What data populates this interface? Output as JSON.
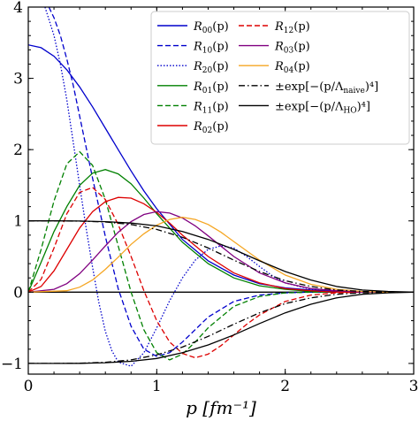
{
  "chart_data": {
    "type": "line",
    "xlabel": "p [fm⁻¹]",
    "ylabel": "",
    "xlim": [
      0,
      3
    ],
    "ylim": [
      -1.15,
      4
    ],
    "x_ticks": [
      0,
      1,
      2,
      3
    ],
    "y_ticks": [
      -1,
      0,
      1,
      2,
      3,
      4
    ],
    "x_tick_labels": [
      "0",
      "1",
      "2",
      "3"
    ],
    "y_tick_labels": [
      "−1",
      "0",
      "1",
      "2",
      "3",
      "4"
    ],
    "grid": false,
    "legend_position": "top-right",
    "legend_columns": 2,
    "series": [
      {
        "name": "R00(p)",
        "color": "#0000cc",
        "style": "solid",
        "x": [
          0,
          0.1,
          0.2,
          0.3,
          0.4,
          0.5,
          0.6,
          0.7,
          0.8,
          0.9,
          1.0,
          1.2,
          1.4,
          1.6,
          1.8,
          2.0,
          2.2,
          2.4,
          2.6,
          2.8,
          3.0
        ],
        "y": [
          3.47,
          3.43,
          3.31,
          3.12,
          2.88,
          2.6,
          2.3,
          2.0,
          1.7,
          1.42,
          1.17,
          0.74,
          0.44,
          0.24,
          0.12,
          0.06,
          0.03,
          0.01,
          0.0,
          0.0,
          0.0
        ]
      },
      {
        "name": "R10(p)",
        "color": "#0000cc",
        "style": "dashed",
        "x": [
          0.16,
          0.2,
          0.25,
          0.3,
          0.35,
          0.4,
          0.5,
          0.6,
          0.7,
          0.8,
          0.9,
          1.0,
          1.1,
          1.2,
          1.4,
          1.6,
          1.8,
          2.0,
          2.2,
          2.4,
          2.6,
          2.8,
          3.0
        ],
        "y": [
          4.0,
          3.85,
          3.6,
          3.27,
          2.9,
          2.47,
          1.6,
          0.78,
          0.05,
          -0.48,
          -0.8,
          -0.9,
          -0.85,
          -0.7,
          -0.35,
          -0.13,
          -0.04,
          -0.01,
          0.0,
          0.0,
          0.0,
          0.0,
          0.0
        ]
      },
      {
        "name": "R20(p)",
        "color": "#0000cc",
        "style": "dotted",
        "x": [
          0.13,
          0.2,
          0.25,
          0.3,
          0.35,
          0.4,
          0.45,
          0.5,
          0.55,
          0.6,
          0.65,
          0.7,
          0.8,
          0.9,
          1.0,
          1.1,
          1.2,
          1.3,
          1.4,
          1.5,
          1.6,
          1.7,
          1.8,
          1.9,
          2.0,
          2.2,
          2.4,
          2.6,
          2.8,
          3.0
        ],
        "y": [
          4.0,
          3.6,
          3.2,
          2.7,
          2.1,
          1.5,
          0.9,
          0.35,
          -0.15,
          -0.55,
          -0.82,
          -0.98,
          -1.04,
          -0.85,
          -0.5,
          -0.12,
          0.2,
          0.45,
          0.6,
          0.65,
          0.62,
          0.5,
          0.36,
          0.23,
          0.13,
          0.04,
          0.01,
          0.0,
          0.0,
          0.0
        ]
      },
      {
        "name": "R01(p)",
        "color": "#008000",
        "style": "solid",
        "x": [
          0,
          0.1,
          0.2,
          0.3,
          0.4,
          0.5,
          0.6,
          0.7,
          0.8,
          0.9,
          1.0,
          1.2,
          1.4,
          1.6,
          1.8,
          2.0,
          2.2,
          2.4,
          2.6,
          2.8,
          3.0
        ],
        "y": [
          0.0,
          0.42,
          0.85,
          1.2,
          1.5,
          1.67,
          1.72,
          1.66,
          1.52,
          1.32,
          1.1,
          0.7,
          0.4,
          0.2,
          0.09,
          0.04,
          0.01,
          0.0,
          0.0,
          0.0,
          0.0
        ]
      },
      {
        "name": "R11(p)",
        "color": "#008000",
        "style": "dashed",
        "x": [
          0,
          0.1,
          0.2,
          0.3,
          0.4,
          0.5,
          0.6,
          0.7,
          0.8,
          0.9,
          1.0,
          1.1,
          1.2,
          1.3,
          1.4,
          1.6,
          1.8,
          2.0,
          2.2,
          2.4,
          2.6,
          2.8,
          3.0
        ],
        "y": [
          0.0,
          0.6,
          1.28,
          1.8,
          1.97,
          1.78,
          1.3,
          0.65,
          0.0,
          -0.53,
          -0.85,
          -0.95,
          -0.87,
          -0.7,
          -0.5,
          -0.2,
          -0.06,
          -0.01,
          0.0,
          0.0,
          0.0,
          0.0,
          0.0
        ]
      },
      {
        "name": "R02(p)",
        "color": "#dd0000",
        "style": "solid",
        "x": [
          0,
          0.1,
          0.2,
          0.3,
          0.4,
          0.5,
          0.6,
          0.7,
          0.8,
          0.9,
          1.0,
          1.1,
          1.2,
          1.4,
          1.6,
          1.8,
          2.0,
          2.2,
          2.4,
          2.6,
          2.8,
          3.0
        ],
        "y": [
          0.0,
          0.08,
          0.3,
          0.6,
          0.9,
          1.13,
          1.27,
          1.33,
          1.32,
          1.24,
          1.12,
          0.97,
          0.8,
          0.5,
          0.27,
          0.13,
          0.05,
          0.02,
          0.0,
          0.0,
          0.0,
          0.0
        ]
      },
      {
        "name": "R12(p)",
        "color": "#dd0000",
        "style": "dashed",
        "x": [
          0,
          0.1,
          0.2,
          0.3,
          0.4,
          0.5,
          0.6,
          0.7,
          0.8,
          0.9,
          1.0,
          1.1,
          1.2,
          1.3,
          1.4,
          1.5,
          1.6,
          1.7,
          1.8,
          2.0,
          2.2,
          2.4,
          2.6,
          2.8,
          3.0
        ],
        "y": [
          0.0,
          0.18,
          0.62,
          1.1,
          1.4,
          1.47,
          1.3,
          0.95,
          0.5,
          0.02,
          -0.4,
          -0.7,
          -0.86,
          -0.92,
          -0.87,
          -0.75,
          -0.6,
          -0.45,
          -0.32,
          -0.13,
          -0.04,
          -0.01,
          0.0,
          0.0,
          0.0
        ]
      },
      {
        "name": "R03(p)",
        "color": "#800080",
        "style": "solid",
        "x": [
          0,
          0.2,
          0.3,
          0.4,
          0.5,
          0.6,
          0.7,
          0.8,
          0.9,
          1.0,
          1.1,
          1.2,
          1.3,
          1.4,
          1.6,
          1.8,
          2.0,
          2.2,
          2.4,
          2.6,
          2.8,
          3.0
        ],
        "y": [
          0.0,
          0.04,
          0.12,
          0.26,
          0.45,
          0.65,
          0.84,
          0.99,
          1.09,
          1.13,
          1.11,
          1.04,
          0.93,
          0.79,
          0.5,
          0.27,
          0.13,
          0.05,
          0.02,
          0.0,
          0.0,
          0.0
        ]
      },
      {
        "name": "R04(p)",
        "color": "#f5a623",
        "style": "solid",
        "x": [
          0,
          0.3,
          0.4,
          0.5,
          0.6,
          0.7,
          0.8,
          0.9,
          1.0,
          1.1,
          1.2,
          1.3,
          1.4,
          1.5,
          1.6,
          1.8,
          2.0,
          2.2,
          2.4,
          2.6,
          2.8,
          3.0
        ],
        "y": [
          0.0,
          0.02,
          0.07,
          0.17,
          0.32,
          0.49,
          0.67,
          0.82,
          0.94,
          1.02,
          1.05,
          1.02,
          0.95,
          0.84,
          0.71,
          0.45,
          0.24,
          0.11,
          0.04,
          0.01,
          0.0,
          0.0
        ]
      },
      {
        "name": "±exp[−(p/Λnaive)⁴]",
        "color": "#000000",
        "style": "dashdot",
        "x": [
          0,
          0.2,
          0.4,
          0.6,
          0.8,
          1.0,
          1.2,
          1.4,
          1.6,
          1.8,
          2.0,
          2.2,
          2.4,
          2.6,
          2.8,
          3.0
        ],
        "y": [
          1.0,
          1.0,
          0.997,
          0.984,
          0.95,
          0.88,
          0.77,
          0.62,
          0.45,
          0.29,
          0.16,
          0.08,
          0.03,
          0.01,
          0.0,
          0.0
        ],
        "mirrored": true
      },
      {
        "name": "±exp[−(p/ΛHO)⁴]",
        "color": "#000000",
        "style": "solid",
        "x": [
          0,
          0.2,
          0.4,
          0.6,
          0.8,
          1.0,
          1.2,
          1.4,
          1.6,
          1.8,
          2.0,
          2.2,
          2.4,
          2.6,
          2.8,
          3.0
        ],
        "y": [
          1.0,
          1.0,
          0.998,
          0.99,
          0.97,
          0.93,
          0.85,
          0.74,
          0.6,
          0.44,
          0.29,
          0.17,
          0.08,
          0.03,
          0.01,
          0.0
        ],
        "mirrored": true
      }
    ],
    "zero_line": {
      "y": 0,
      "color": "#000000"
    }
  },
  "legend": {
    "col1": [
      {
        "base": "R",
        "sub": "00",
        "tail": "(p)",
        "color": "#0000cc",
        "style": "solid"
      },
      {
        "base": "R",
        "sub": "10",
        "tail": "(p)",
        "color": "#0000cc",
        "style": "dashed"
      },
      {
        "base": "R",
        "sub": "20",
        "tail": "(p)",
        "color": "#0000cc",
        "style": "dotted"
      },
      {
        "base": "R",
        "sub": "01",
        "tail": "(p)",
        "color": "#008000",
        "style": "solid"
      },
      {
        "base": "R",
        "sub": "11",
        "tail": "(p)",
        "color": "#008000",
        "style": "dashed"
      },
      {
        "base": "R",
        "sub": "02",
        "tail": "(p)",
        "color": "#dd0000",
        "style": "solid"
      }
    ],
    "col2": [
      {
        "base": "R",
        "sub": "12",
        "tail": "(p)",
        "color": "#dd0000",
        "style": "dashed"
      },
      {
        "base": "R",
        "sub": "03",
        "tail": "(p)",
        "color": "#800080",
        "style": "solid"
      },
      {
        "base": "R",
        "sub": "04",
        "tail": "(p)",
        "color": "#f5a623",
        "style": "solid"
      },
      {
        "base": "±exp[−(p/Λ",
        "sub": "naive",
        "tail": ")⁴]",
        "color": "#000000",
        "style": "dashdot"
      },
      {
        "base": "±exp[−(p/Λ",
        "sub": "HO",
        "tail": ")⁴]",
        "color": "#000000",
        "style": "solid"
      }
    ]
  }
}
